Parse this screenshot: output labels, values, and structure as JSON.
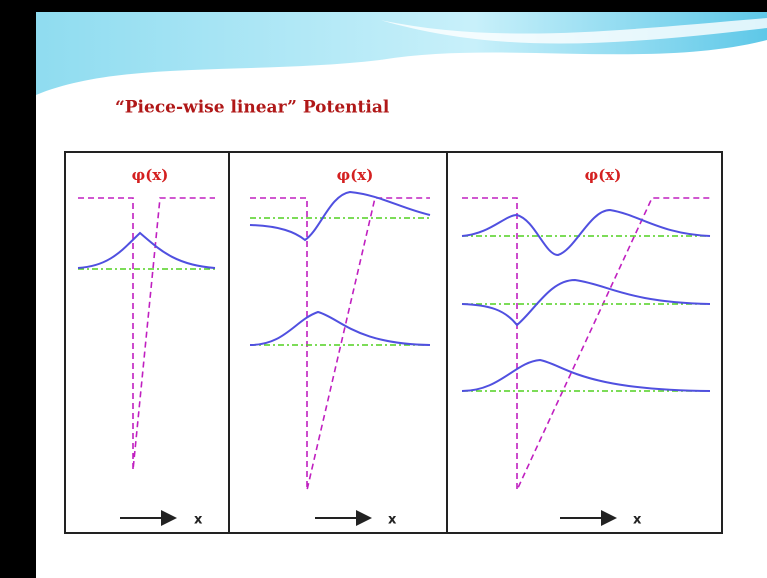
{
  "title": "“Piece-wise linear” Potential",
  "panels": [
    {
      "label": "φ(x)",
      "axis": "x"
    },
    {
      "label": "φ(x)",
      "axis": "x"
    },
    {
      "label": "φ(x)",
      "axis": "x"
    }
  ]
}
